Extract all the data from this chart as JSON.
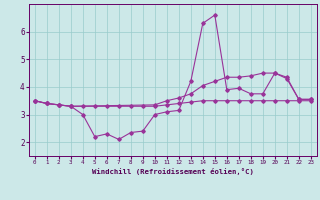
{
  "xlabel": "Windchill (Refroidissement éolien,°C)",
  "xlim": [
    -0.5,
    23.5
  ],
  "ylim": [
    1.5,
    7.0
  ],
  "yticks": [
    2,
    3,
    4,
    5,
    6
  ],
  "xticks": [
    0,
    1,
    2,
    3,
    4,
    5,
    6,
    7,
    8,
    9,
    10,
    11,
    12,
    13,
    14,
    15,
    16,
    17,
    18,
    19,
    20,
    21,
    22,
    23
  ],
  "background_color": "#cce8e8",
  "line_color": "#993399",
  "grid_color": "#99cccc",
  "lines": [
    {
      "x": [
        0,
        1,
        2,
        3,
        4,
        5,
        6,
        7,
        8,
        9,
        10,
        11,
        12,
        13,
        14,
        15,
        16,
        17,
        18,
        19,
        20,
        21,
        22,
        23
      ],
      "y": [
        3.5,
        3.4,
        3.35,
        3.3,
        3.0,
        2.2,
        2.3,
        2.1,
        2.35,
        2.4,
        3.0,
        3.1,
        3.15,
        4.2,
        6.3,
        6.6,
        3.9,
        3.95,
        3.75,
        3.75,
        4.5,
        4.3,
        3.55,
        3.55
      ]
    },
    {
      "x": [
        0,
        1,
        2,
        3,
        10,
        11,
        12,
        13,
        14,
        15,
        16,
        17,
        18,
        19,
        20,
        21,
        22,
        23
      ],
      "y": [
        3.5,
        3.4,
        3.35,
        3.3,
        3.35,
        3.5,
        3.6,
        3.75,
        4.05,
        4.2,
        4.35,
        4.35,
        4.4,
        4.5,
        4.5,
        4.35,
        3.55,
        3.55
      ]
    },
    {
      "x": [
        0,
        1,
        2,
        3,
        4,
        5,
        6,
        7,
        8,
        9,
        10,
        11,
        12,
        13,
        14,
        15,
        16,
        17,
        18,
        19,
        20,
        21,
        22,
        23
      ],
      "y": [
        3.5,
        3.4,
        3.35,
        3.3,
        3.3,
        3.3,
        3.3,
        3.3,
        3.3,
        3.3,
        3.3,
        3.35,
        3.4,
        3.45,
        3.5,
        3.5,
        3.5,
        3.5,
        3.5,
        3.5,
        3.5,
        3.5,
        3.5,
        3.5
      ]
    }
  ]
}
